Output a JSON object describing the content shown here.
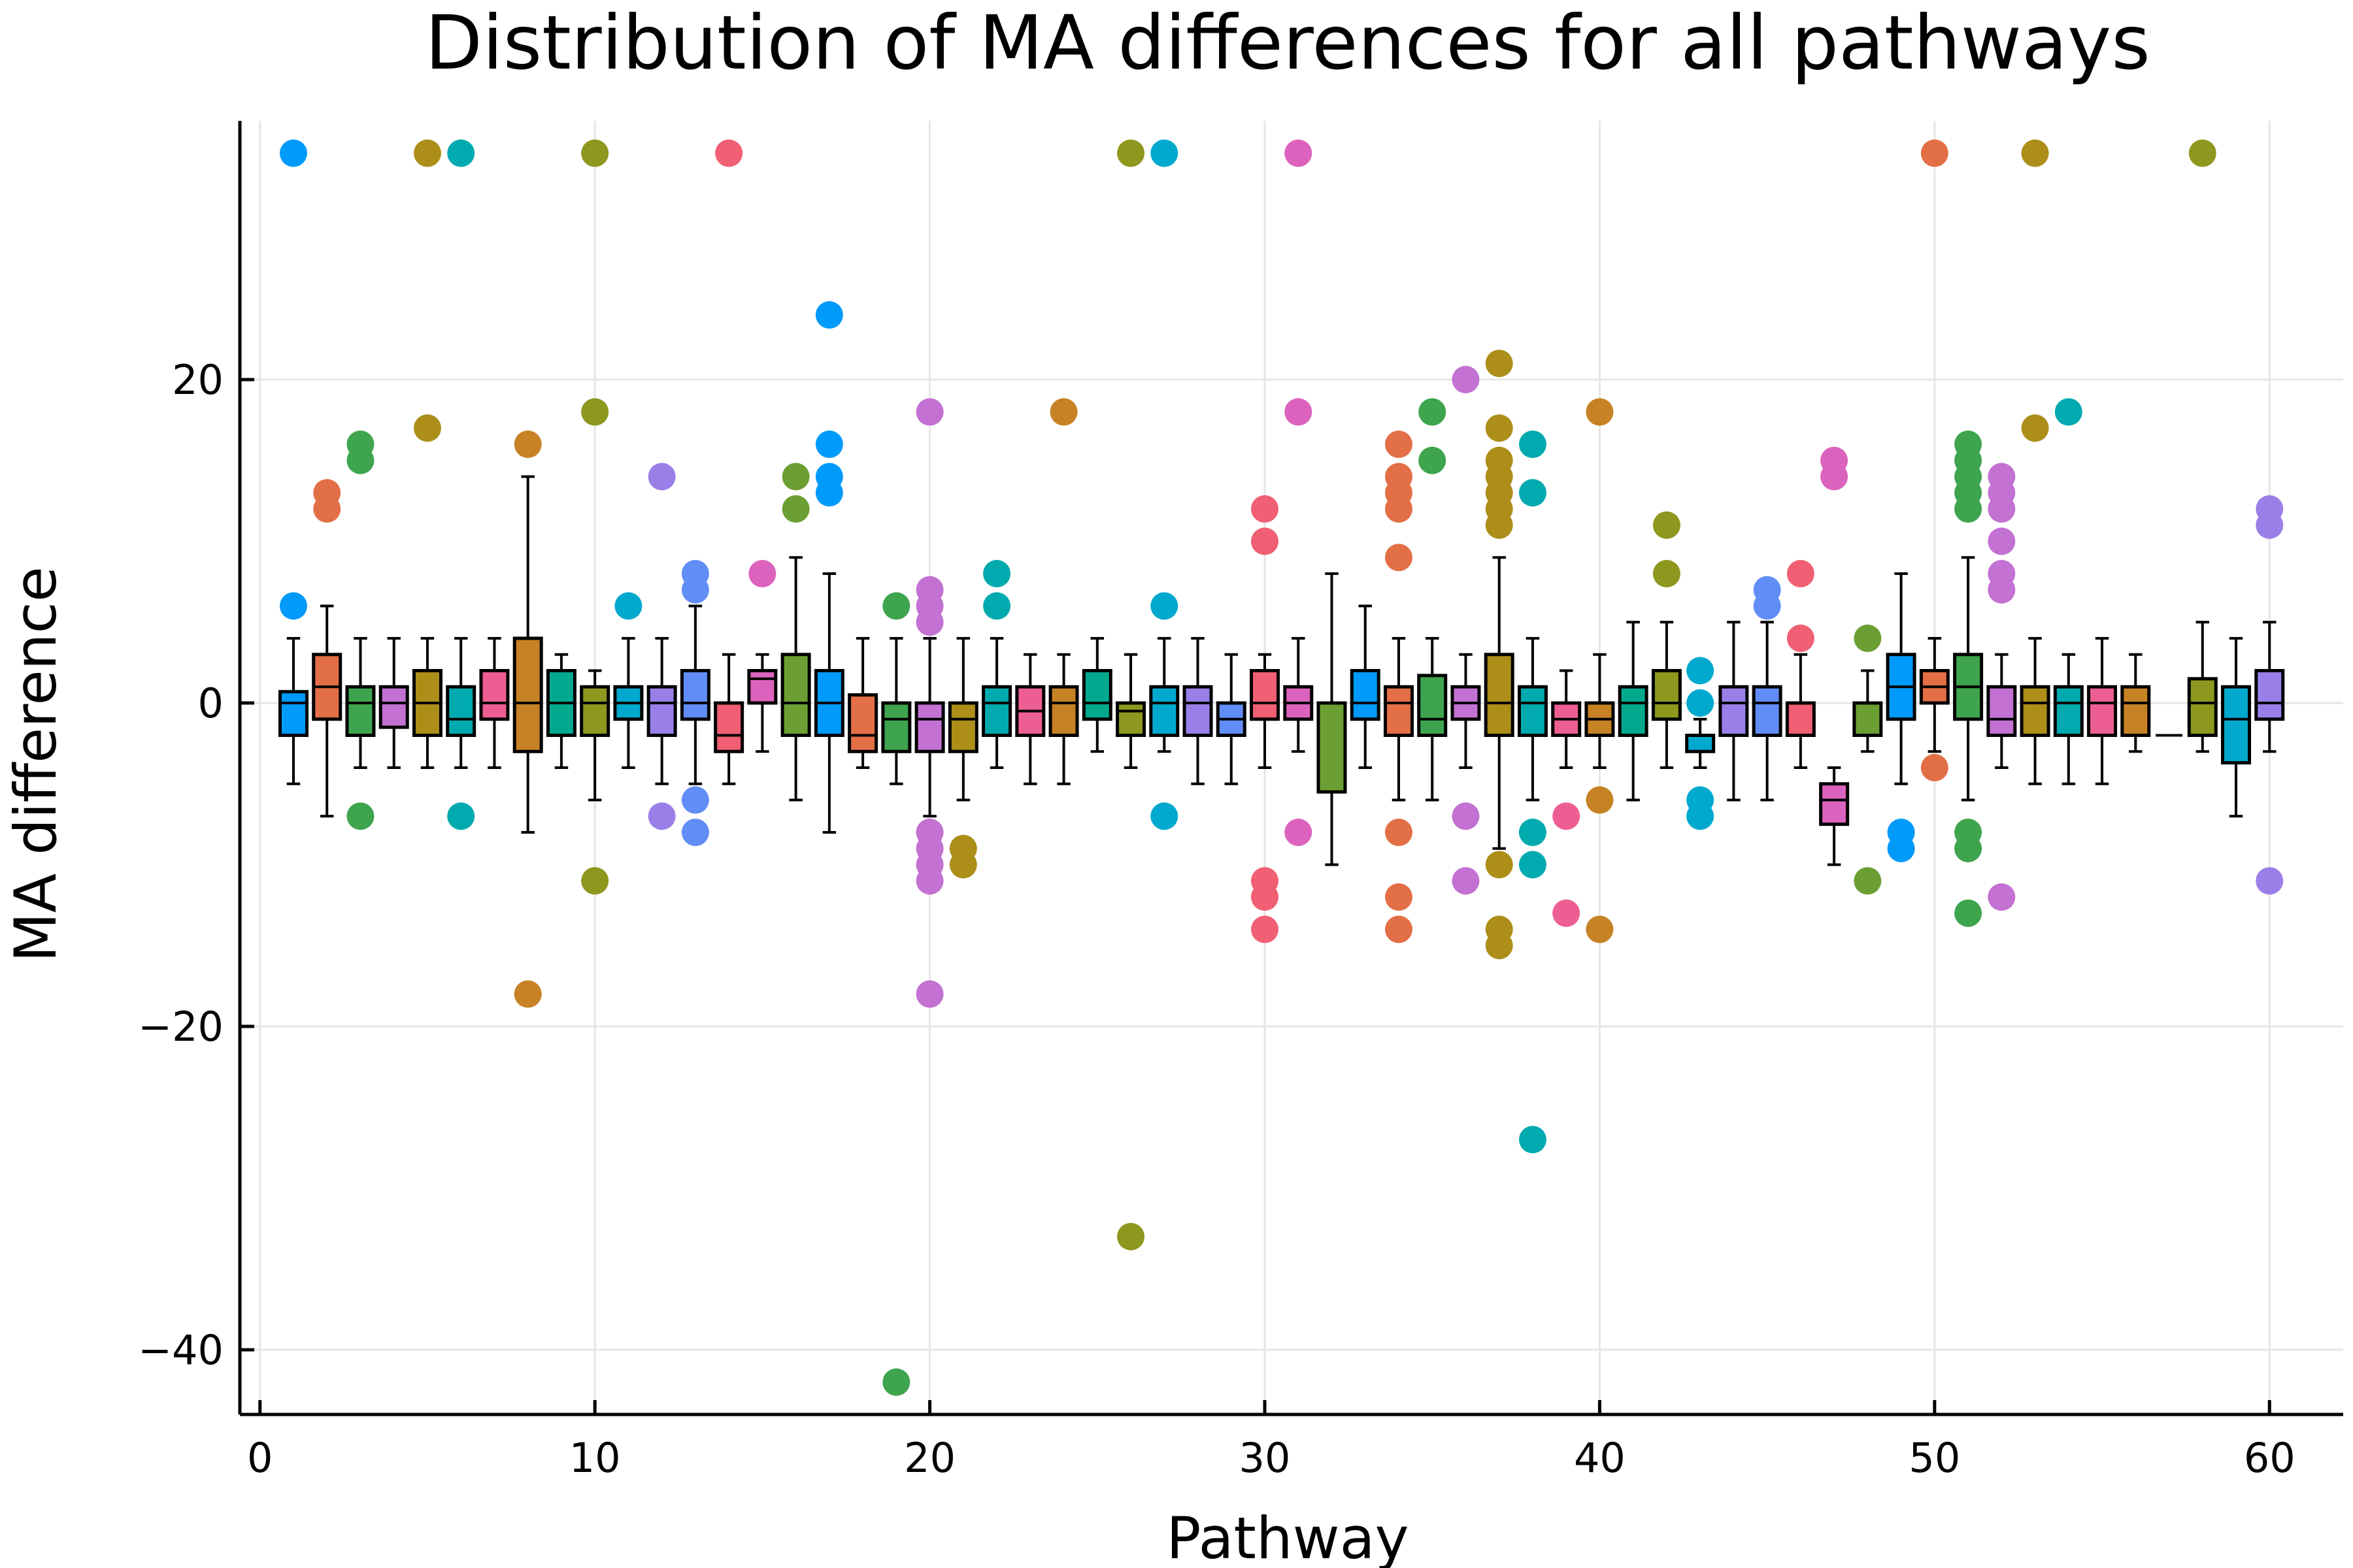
{
  "chart_data": {
    "type": "box",
    "title": "Distribution of MA differences for all pathways",
    "xlabel": "Pathway",
    "ylabel": "MA difference",
    "xlim": [
      -0.6,
      62.2
    ],
    "ylim": [
      -44,
      36
    ],
    "xticks": [
      0,
      10,
      20,
      30,
      40,
      50,
      60
    ],
    "yticks": [
      -40,
      -20,
      0,
      20
    ],
    "xtick_labels": [
      "0",
      "10",
      "20",
      "30",
      "40",
      "50",
      "60"
    ],
    "ytick_labels": [
      "−40",
      "−20",
      "0",
      "20"
    ],
    "grid": true,
    "legend": "none",
    "palette": [
      "#009AFA",
      "#E36F47",
      "#3EA44E",
      "#C371D2",
      "#AC8E18",
      "#00AAAE",
      "#ED5E93",
      "#C68225",
      "#00A98D",
      "#8E971E",
      "#00A9CD",
      "#9B7FE8",
      "#618DF6",
      "#F05F73",
      "#DC63BD",
      "#6C9F33"
    ],
    "series": [
      {
        "x": 1,
        "q1": -2,
        "median": 0,
        "q3": 0.7,
        "whisker_low": -5,
        "whisker_high": 4,
        "outliers": [
          34,
          6
        ]
      },
      {
        "x": 2,
        "q1": -1,
        "median": 1,
        "q3": 3,
        "whisker_low": -7,
        "whisker_high": 6,
        "outliers": [
          13,
          12
        ]
      },
      {
        "x": 3,
        "q1": -2,
        "median": 0,
        "q3": 1,
        "whisker_low": -4,
        "whisker_high": 4,
        "outliers": [
          16,
          15,
          -7
        ]
      },
      {
        "x": 4,
        "q1": -1.5,
        "median": 0,
        "q3": 1,
        "whisker_low": -4,
        "whisker_high": 4,
        "outliers": []
      },
      {
        "x": 5,
        "q1": -2,
        "median": 0,
        "q3": 2,
        "whisker_low": -4,
        "whisker_high": 4,
        "outliers": [
          34,
          17
        ]
      },
      {
        "x": 6,
        "q1": -2,
        "median": -1,
        "q3": 1,
        "whisker_low": -4,
        "whisker_high": 4,
        "outliers": [
          34,
          -7
        ]
      },
      {
        "x": 7,
        "q1": -1,
        "median": 0,
        "q3": 2,
        "whisker_low": -4,
        "whisker_high": 4,
        "outliers": []
      },
      {
        "x": 8,
        "q1": -3,
        "median": 0,
        "q3": 4,
        "whisker_low": -8,
        "whisker_high": 14,
        "outliers": [
          16,
          -18
        ]
      },
      {
        "x": 9,
        "q1": -2,
        "median": 0,
        "q3": 2,
        "whisker_low": -4,
        "whisker_high": 3,
        "outliers": []
      },
      {
        "x": 10,
        "q1": -2,
        "median": 0,
        "q3": 1,
        "whisker_low": -6,
        "whisker_high": 2,
        "outliers": [
          34,
          18,
          -11
        ]
      },
      {
        "x": 11,
        "q1": -1,
        "median": 0,
        "q3": 1,
        "whisker_low": -4,
        "whisker_high": 4,
        "outliers": [
          6
        ]
      },
      {
        "x": 12,
        "q1": -2,
        "median": 0,
        "q3": 1,
        "whisker_low": -5,
        "whisker_high": 4,
        "outliers": [
          14,
          -7
        ]
      },
      {
        "x": 13,
        "q1": -1,
        "median": 0,
        "q3": 2,
        "whisker_low": -5,
        "whisker_high": 6,
        "outliers": [
          8,
          7,
          -6,
          -8
        ]
      },
      {
        "x": 14,
        "q1": -3,
        "median": -2,
        "q3": 0,
        "whisker_low": -5,
        "whisker_high": 3,
        "outliers": [
          34
        ]
      },
      {
        "x": 15,
        "q1": 0,
        "median": 1.5,
        "q3": 2,
        "whisker_low": -3,
        "whisker_high": 3,
        "outliers": [
          8
        ]
      },
      {
        "x": 16,
        "q1": -2,
        "median": 0,
        "q3": 3,
        "whisker_low": -6,
        "whisker_high": 9,
        "outliers": [
          14,
          12
        ]
      },
      {
        "x": 17,
        "q1": -2,
        "median": 0,
        "q3": 2,
        "whisker_low": -8,
        "whisker_high": 8,
        "outliers": [
          24,
          16,
          14,
          13
        ]
      },
      {
        "x": 18,
        "q1": -3,
        "median": -2,
        "q3": 0.5,
        "whisker_low": -4,
        "whisker_high": 4,
        "outliers": []
      },
      {
        "x": 19,
        "q1": -3,
        "median": -1,
        "q3": 0,
        "whisker_low": -5,
        "whisker_high": 4,
        "outliers": [
          6,
          -42
        ]
      },
      {
        "x": 20,
        "q1": -3,
        "median": -1,
        "q3": 0,
        "whisker_low": -7,
        "whisker_high": 4,
        "outliers": [
          18,
          7,
          6,
          5,
          -8,
          -9,
          -10,
          -11,
          -18
        ]
      },
      {
        "x": 21,
        "q1": -3,
        "median": -1,
        "q3": 0,
        "whisker_low": -6,
        "whisker_high": 4,
        "outliers": [
          -9,
          -10
        ]
      },
      {
        "x": 22,
        "q1": -2,
        "median": 0,
        "q3": 1,
        "whisker_low": -4,
        "whisker_high": 4,
        "outliers": [
          8,
          6
        ]
      },
      {
        "x": 23,
        "q1": -2,
        "median": -0.5,
        "q3": 1,
        "whisker_low": -5,
        "whisker_high": 3,
        "outliers": []
      },
      {
        "x": 24,
        "q1": -2,
        "median": 0,
        "q3": 1,
        "whisker_low": -5,
        "whisker_high": 3,
        "outliers": [
          18
        ]
      },
      {
        "x": 25,
        "q1": -1,
        "median": 0,
        "q3": 2,
        "whisker_low": -3,
        "whisker_high": 4,
        "outliers": []
      },
      {
        "x": 26,
        "q1": -2,
        "median": -0.5,
        "q3": 0,
        "whisker_low": -4,
        "whisker_high": 3,
        "outliers": [
          34,
          -33
        ]
      },
      {
        "x": 27,
        "q1": -2,
        "median": 0,
        "q3": 1,
        "whisker_low": -3,
        "whisker_high": 4,
        "outliers": [
          34,
          6,
          -7
        ]
      },
      {
        "x": 28,
        "q1": -2,
        "median": 0,
        "q3": 1,
        "whisker_low": -5,
        "whisker_high": 4,
        "outliers": []
      },
      {
        "x": 29,
        "q1": -2,
        "median": -1,
        "q3": 0,
        "whisker_low": -5,
        "whisker_high": 3,
        "outliers": []
      },
      {
        "x": 30,
        "q1": -1,
        "median": 0,
        "q3": 2,
        "whisker_low": -4,
        "whisker_high": 3,
        "outliers": [
          12,
          10,
          -11,
          -12,
          -14
        ]
      },
      {
        "x": 31,
        "q1": -1,
        "median": 0,
        "q3": 1,
        "whisker_low": -3,
        "whisker_high": 4,
        "outliers": [
          34,
          18,
          -8
        ]
      },
      {
        "x": 32,
        "q1": -5.5,
        "median": 0,
        "q3": 0,
        "whisker_low": -10,
        "whisker_high": 8,
        "outliers": []
      },
      {
        "x": 33,
        "q1": -1,
        "median": 0,
        "q3": 2,
        "whisker_low": -4,
        "whisker_high": 6,
        "outliers": []
      },
      {
        "x": 34,
        "q1": -2,
        "median": 0,
        "q3": 1,
        "whisker_low": -6,
        "whisker_high": 4,
        "outliers": [
          16,
          14,
          13,
          12,
          9,
          -8,
          -12,
          -14
        ]
      },
      {
        "x": 35,
        "q1": -2,
        "median": -1,
        "q3": 1.7,
        "whisker_low": -6,
        "whisker_high": 4,
        "outliers": [
          18,
          15
        ]
      },
      {
        "x": 36,
        "q1": -1,
        "median": 0,
        "q3": 1,
        "whisker_low": -4,
        "whisker_high": 3,
        "outliers": [
          20,
          -7,
          -11
        ]
      },
      {
        "x": 37,
        "q1": -2,
        "median": 0,
        "q3": 3,
        "whisker_low": -9,
        "whisker_high": 9,
        "outliers": [
          21,
          17,
          15,
          14,
          13,
          12,
          11,
          -10,
          -14,
          -15
        ]
      },
      {
        "x": 38,
        "q1": -2,
        "median": 0,
        "q3": 1,
        "whisker_low": -6,
        "whisker_high": 4,
        "outliers": [
          16,
          13,
          -8,
          -10,
          -27
        ]
      },
      {
        "x": 39,
        "q1": -2,
        "median": -1,
        "q3": 0,
        "whisker_low": -4,
        "whisker_high": 2,
        "outliers": [
          -7,
          -13
        ]
      },
      {
        "x": 40,
        "q1": -2,
        "median": -1,
        "q3": 0,
        "whisker_low": -4,
        "whisker_high": 3,
        "outliers": [
          18,
          -6,
          -14
        ]
      },
      {
        "x": 41,
        "q1": -2,
        "median": 0,
        "q3": 1,
        "whisker_low": -6,
        "whisker_high": 5,
        "outliers": []
      },
      {
        "x": 42,
        "q1": -1,
        "median": 0,
        "q3": 2,
        "whisker_low": -4,
        "whisker_high": 5,
        "outliers": [
          11,
          8
        ]
      },
      {
        "x": 43,
        "q1": -3,
        "median": -2,
        "q3": -2,
        "whisker_low": -4,
        "whisker_high": -1,
        "outliers": [
          2,
          0,
          -6,
          -7
        ]
      },
      {
        "x": 44,
        "q1": -2,
        "median": 0,
        "q3": 1,
        "whisker_low": -6,
        "whisker_high": 5,
        "outliers": []
      },
      {
        "x": 45,
        "q1": -2,
        "median": 0,
        "q3": 1,
        "whisker_low": -6,
        "whisker_high": 5,
        "outliers": [
          7,
          6
        ]
      },
      {
        "x": 46,
        "q1": -2,
        "median": 0,
        "q3": 0,
        "whisker_low": -4,
        "whisker_high": 3,
        "outliers": [
          8,
          4
        ]
      },
      {
        "x": 47,
        "q1": -7.5,
        "median": -6,
        "q3": -5,
        "whisker_low": -10,
        "whisker_high": -4,
        "outliers": [
          15,
          14
        ]
      },
      {
        "x": 48,
        "q1": -2,
        "median": 0,
        "q3": 0,
        "whisker_low": -3,
        "whisker_high": 2,
        "outliers": [
          4,
          -11
        ]
      },
      {
        "x": 49,
        "q1": -1,
        "median": 1,
        "q3": 3,
        "whisker_low": -5,
        "whisker_high": 8,
        "outliers": [
          -8,
          -9
        ]
      },
      {
        "x": 50,
        "q1": 0,
        "median": 1,
        "q3": 2,
        "whisker_low": -3,
        "whisker_high": 4,
        "outliers": [
          34,
          -4
        ]
      },
      {
        "x": 51,
        "q1": -1,
        "median": 1,
        "q3": 3,
        "whisker_low": -6,
        "whisker_high": 9,
        "outliers": [
          16,
          15,
          14,
          13,
          12,
          -8,
          -9,
          -13
        ]
      },
      {
        "x": 52,
        "q1": -2,
        "median": -1,
        "q3": 1,
        "whisker_low": -4,
        "whisker_high": 3,
        "outliers": [
          14,
          13,
          12,
          10,
          8,
          7,
          -12
        ]
      },
      {
        "x": 53,
        "q1": -2,
        "median": 0,
        "q3": 1,
        "whisker_low": -5,
        "whisker_high": 4,
        "outliers": [
          34,
          17
        ]
      },
      {
        "x": 54,
        "q1": -2,
        "median": 0,
        "q3": 1,
        "whisker_low": -5,
        "whisker_high": 3,
        "outliers": [
          18
        ]
      },
      {
        "x": 55,
        "q1": -2,
        "median": 0,
        "q3": 1,
        "whisker_low": -5,
        "whisker_high": 4,
        "outliers": []
      },
      {
        "x": 56,
        "q1": -2,
        "median": 0,
        "q3": 1,
        "whisker_low": -3,
        "whisker_high": 3,
        "outliers": []
      },
      {
        "x": 57,
        "q1": -2,
        "median": -2,
        "q3": -2,
        "whisker_low": -2,
        "whisker_high": -2,
        "outliers": []
      },
      {
        "x": 58,
        "q1": -2,
        "median": 0,
        "q3": 1.5,
        "whisker_low": -3,
        "whisker_high": 5,
        "outliers": [
          34
        ]
      },
      {
        "x": 59,
        "q1": -3.7,
        "median": -1,
        "q3": 1,
        "whisker_low": -7,
        "whisker_high": 4,
        "outliers": []
      },
      {
        "x": 60,
        "q1": -1,
        "median": 0,
        "q3": 2,
        "whisker_low": -3,
        "whisker_high": 5,
        "outliers": [
          12,
          11,
          -11
        ]
      }
    ]
  }
}
